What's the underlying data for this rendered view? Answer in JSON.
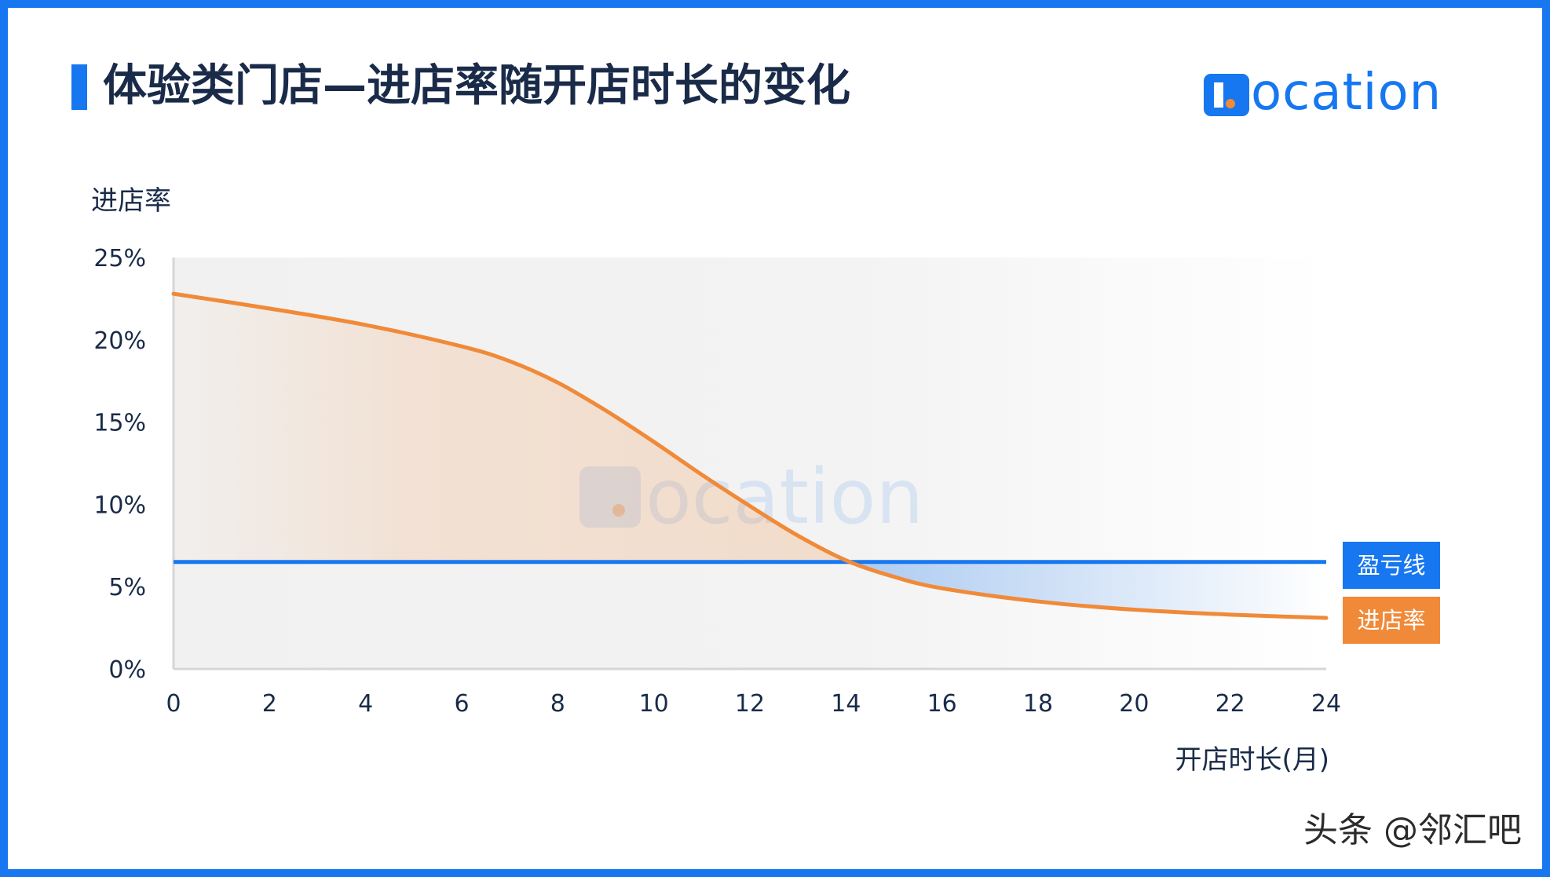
{
  "title": "体验类门店—进店率随开店时长的变化",
  "logo_text": "ocation",
  "credit": "头条 @邻汇吧",
  "colors": {
    "brand_blue": "#1677f0",
    "curve_orange": "#f08a38",
    "text_dark": "#1a2b49"
  },
  "chart_data": {
    "type": "line",
    "title": "体验类门店—进店率随开店时长的变化",
    "xlabel": "开店时长(月)",
    "ylabel": "进店率",
    "xlim": [
      0,
      24
    ],
    "ylim": [
      0,
      25
    ],
    "x_ticks": [
      "0",
      "2",
      "4",
      "6",
      "8",
      "10",
      "12",
      "14",
      "16",
      "18",
      "20",
      "22",
      "24"
    ],
    "y_ticks": [
      "0%",
      "5%",
      "10%",
      "15%",
      "20%",
      "25%"
    ],
    "grid": false,
    "legend_position": "right",
    "series": [
      {
        "name": "进店率",
        "color": "#f08a38",
        "x": [
          0,
          2,
          4,
          6,
          7,
          8,
          9,
          10,
          11,
          12,
          13,
          14,
          15,
          16,
          18,
          20,
          22,
          24
        ],
        "y": [
          22.8,
          21.9,
          20.9,
          19.6,
          18.7,
          17.4,
          15.7,
          13.8,
          11.8,
          9.9,
          8.1,
          6.6,
          5.6,
          4.9,
          4.1,
          3.6,
          3.3,
          3.1
        ]
      },
      {
        "name": "盈亏线",
        "color": "#1677f0",
        "x": [
          0,
          24
        ],
        "y": [
          6.5,
          6.5
        ]
      }
    ]
  }
}
